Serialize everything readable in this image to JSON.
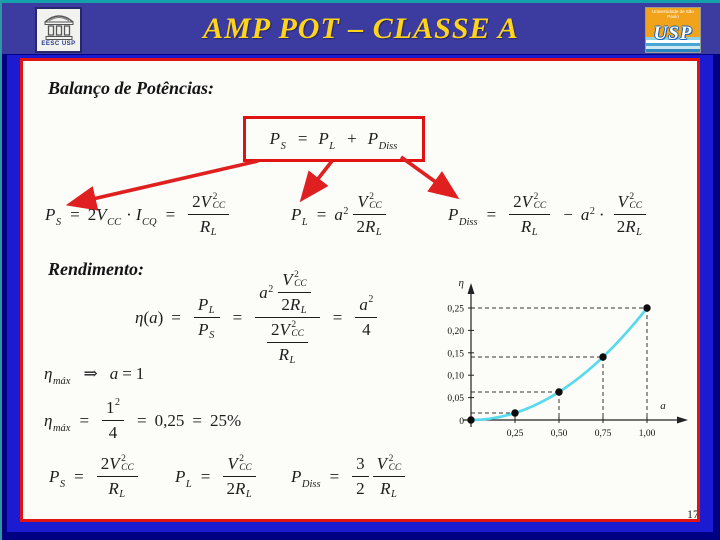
{
  "header": {
    "title": "AMP POT – CLASSE A",
    "left_logo": {
      "caption": "EESC USP"
    },
    "right_logo": {
      "top_text": "Universidade de São Paulo",
      "main_text": "USP"
    }
  },
  "headings": {
    "balanco": "Balanço de Potências:",
    "rendimento": "Rendimento:"
  },
  "page_number": "17",
  "tok": {
    "P": "P",
    "S": "S",
    "L": "L",
    "Diss": "Diss",
    "V": "V",
    "R": "R",
    "I": "I",
    "a": "a",
    "eta": "η",
    "CC": "CC",
    "CQ": "CQ",
    "n1": "1",
    "n2": "2",
    "n3": "3",
    "n4": "4",
    "sup2": "2",
    "eq": "=",
    "plus": "+",
    "minus": "−",
    "cdot": "·",
    "implies": "⇒",
    "lp": "(",
    "rp": ")",
    "max": "máx",
    "v025": "0,25",
    "v25": "25%"
  },
  "chart_data": {
    "type": "line",
    "curve_label": "η(a) = a²/4",
    "xlabel": "a",
    "ylabel": "η",
    "x": [
      0,
      0.25,
      0.5,
      0.75,
      1.0
    ],
    "y": [
      0,
      0.0156,
      0.0625,
      0.1406,
      0.25
    ],
    "x_tick_values": [
      0.25,
      0.5,
      0.75,
      1.0
    ],
    "x_tick_labels": [
      "0,25",
      "0,50",
      "0,75",
      "1,00"
    ],
    "y_tick_values": [
      0.05,
      0.1,
      0.15,
      0.2,
      0.25
    ],
    "y_tick_labels": [
      "0,05",
      "0,10",
      "0,15",
      "0,20",
      "0,25"
    ],
    "origin_label": "0",
    "xlim": [
      0,
      1.15
    ],
    "ylim": [
      0,
      0.28
    ],
    "grid": false,
    "legend": null,
    "curve_color": "#58d9ec",
    "point_color": "#0d0d0d",
    "dash_color": "#333333",
    "axis_color": "#222222"
  }
}
